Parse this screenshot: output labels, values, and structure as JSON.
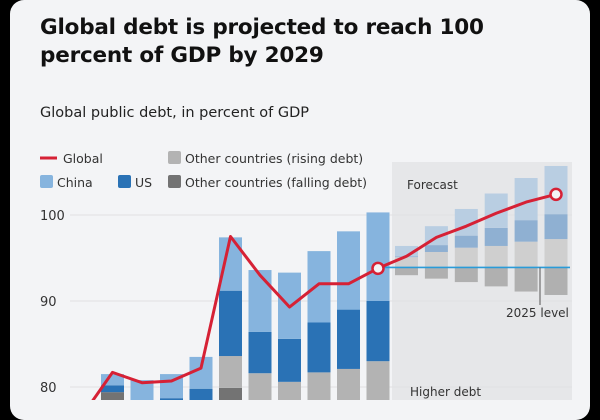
{
  "chart_data": {
    "type": "bar",
    "title": "Global debt is projected to reach 100 percent of GDP by 2029",
    "subtitle": "Global public debt, in percent of GDP",
    "ylim": [
      78,
      106
    ],
    "yticks": [
      "80",
      "90",
      "100"
    ],
    "ytick_values": [
      80,
      90,
      100
    ],
    "grid": true,
    "legend": {
      "placement": "top-left",
      "items": [
        {
          "key": "global",
          "label": "Global",
          "kind": "line"
        },
        {
          "key": "rising",
          "label": "Other countries (rising debt)",
          "kind": "box"
        },
        {
          "key": "china",
          "label": "China",
          "kind": "box"
        },
        {
          "key": "us",
          "label": "US",
          "kind": "box"
        },
        {
          "key": "falling",
          "label": "Other countries (falling debt)",
          "kind": "box"
        }
      ]
    },
    "colors": {
      "global": "#d62135",
      "china": "#86b4de",
      "us": "#2a72b5",
      "rising": "#b3b3b3",
      "falling": "#737373",
      "china_forecast": "#b9cee2",
      "us_forecast": "#8fb0d2",
      "rising_forecast": "#cfcfcf",
      "falling_forecast": "#b0b0b0",
      "level_line": "#2a9bd8",
      "forecast_bg": "#e6e7e9"
    },
    "historical_bars_segment_tops": [
      {
        "falling": 79.4,
        "us": 80.2,
        "china": 81.5
      },
      {
        "china": 80.8
      },
      {
        "us": 78.7,
        "china": 81.5
      },
      {
        "us": 79.8,
        "china": 83.5
      },
      {
        "falling": 79.9,
        "rising": 83.6,
        "us": 91.2,
        "china": 97.4
      },
      {
        "rising": 81.6,
        "us": 86.4,
        "china": 93.6
      },
      {
        "rising": 80.6,
        "us": 85.6,
        "china": 93.3
      },
      {
        "rising": 81.7,
        "us": 87.5,
        "china": 95.8
      },
      {
        "rising": 82.1,
        "us": 89.0,
        "china": 98.1
      },
      {
        "rising": 83.0,
        "us": 90.0,
        "china": 100.3
      }
    ],
    "forecast_bars": [
      {
        "falling_bottom": 93.0,
        "rising": 95.1,
        "us": 95.2,
        "china": 96.4
      },
      {
        "falling_bottom": 92.6,
        "rising": 95.7,
        "us": 96.5,
        "china": 98.7
      },
      {
        "falling_bottom": 92.2,
        "rising": 96.2,
        "us": 97.6,
        "china": 100.7
      },
      {
        "falling_bottom": 91.7,
        "rising": 96.4,
        "us": 98.5,
        "china": 102.5
      },
      {
        "falling_bottom": 91.1,
        "rising": 96.9,
        "us": 99.4,
        "china": 104.3
      },
      {
        "falling_bottom": 90.7,
        "rising": 97.2,
        "us": 100.1,
        "china": 105.7
      }
    ],
    "global_series": [
      76.8,
      81.7,
      80.5,
      80.7,
      82.2,
      97.5,
      93.0,
      89.3,
      92.0,
      92.0,
      93.8,
      95.2,
      97.4,
      98.7,
      100.2,
      101.5,
      102.4
    ],
    "level_2025": 93.9,
    "annotations": {
      "forecast": "Forecast",
      "level": "2025 level",
      "higher": "Higher debt"
    }
  }
}
